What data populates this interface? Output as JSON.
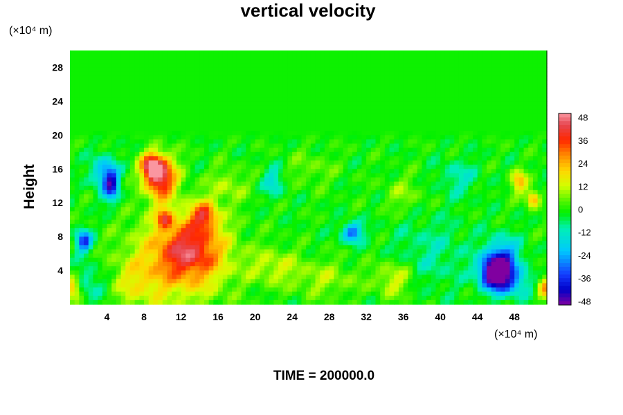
{
  "chart_data": {
    "type": "heatmap",
    "title": "vertical velocity",
    "ylabel": "Height",
    "xunit": "(×10⁴ m)",
    "yunit": "(×10⁴ m)",
    "xlim": [
      0,
      51.5
    ],
    "ylim": [
      0,
      30
    ],
    "xticks": [
      4,
      8,
      12,
      16,
      20,
      24,
      28,
      32,
      36,
      40,
      44,
      48
    ],
    "yticks": [
      4,
      8,
      12,
      16,
      20,
      24,
      28
    ],
    "colorbar": {
      "vmin": -50,
      "vmax": 50,
      "ticks": [
        48,
        36,
        24,
        12,
        0,
        -12,
        -24,
        -36,
        -48
      ]
    },
    "background_value": -1,
    "active_layer_top": 19,
    "features": [
      {
        "x": 13.0,
        "y": 6.5,
        "value": 30,
        "sx": 2.5,
        "sy": 2.5
      },
      {
        "x": 11.5,
        "y": 5.0,
        "value": 18,
        "sx": 4.0,
        "sy": 4.0
      },
      {
        "x": 14.5,
        "y": 10.5,
        "value": 30,
        "sx": 1.0,
        "sy": 1.2
      },
      {
        "x": 9.8,
        "y": 15.0,
        "value": 45,
        "sx": 1.2,
        "sy": 1.8
      },
      {
        "x": 8.8,
        "y": 16.3,
        "value": 38,
        "sx": 0.8,
        "sy": 1.0
      },
      {
        "x": 10.2,
        "y": 10.2,
        "value": 28,
        "sx": 0.6,
        "sy": 0.8
      },
      {
        "x": 45.8,
        "y": 3.8,
        "value": -48,
        "sx": 1.1,
        "sy": 1.3
      },
      {
        "x": 46.8,
        "y": 5.2,
        "value": -30,
        "sx": 1.3,
        "sy": 1.8
      },
      {
        "x": 47.5,
        "y": 2.5,
        "value": -20,
        "sx": 1.5,
        "sy": 1.2
      },
      {
        "x": 4.5,
        "y": 14.2,
        "value": -36,
        "sx": 0.6,
        "sy": 1.4
      },
      {
        "x": 3.5,
        "y": 15.5,
        "value": -20,
        "sx": 0.9,
        "sy": 1.5
      },
      {
        "x": 1.5,
        "y": 7.5,
        "value": -36,
        "sx": 0.6,
        "sy": 0.9
      },
      {
        "x": 30.5,
        "y": 8.5,
        "value": -30,
        "sx": 0.8,
        "sy": 0.8
      },
      {
        "x": 22.0,
        "y": 14.5,
        "value": -15,
        "sx": 0.8,
        "sy": 1.2
      },
      {
        "x": 0.3,
        "y": 2.0,
        "value": 30,
        "sx": 0.6,
        "sy": 1.0
      },
      {
        "x": 51.3,
        "y": 2.0,
        "value": 25,
        "sx": 0.6,
        "sy": 1.0
      },
      {
        "x": 48.5,
        "y": 14.5,
        "value": 25,
        "sx": 0.6,
        "sy": 0.9
      },
      {
        "x": 50.0,
        "y": 12.5,
        "value": 28,
        "sx": 0.5,
        "sy": 0.7
      },
      {
        "x": 22.0,
        "y": 4.5,
        "value": 12,
        "sx": 2.0,
        "sy": 1.5
      },
      {
        "x": 27.5,
        "y": 3.0,
        "value": 10,
        "sx": 2.5,
        "sy": 1.5
      },
      {
        "x": 35.0,
        "y": 3.0,
        "value": 15,
        "sx": 1.5,
        "sy": 1.5
      },
      {
        "x": 7.0,
        "y": 2.5,
        "value": 10,
        "sx": 2.0,
        "sy": 2.0
      },
      {
        "x": 2.0,
        "y": 2.5,
        "value": -12,
        "sx": 1.5,
        "sy": 1.5
      },
      {
        "x": 39.0,
        "y": 6.0,
        "value": -8,
        "sx": 3.0,
        "sy": 3.0
      },
      {
        "x": 17.0,
        "y": 14.0,
        "value": 10,
        "sx": 1.5,
        "sy": 1.5
      },
      {
        "x": 26.0,
        "y": 16.0,
        "value": 6,
        "sx": 2.0,
        "sy": 1.5
      },
      {
        "x": 42.0,
        "y": 15.0,
        "value": -10,
        "sx": 1.5,
        "sy": 1.5
      },
      {
        "x": 36.0,
        "y": 13.0,
        "value": 8,
        "sx": 1.5,
        "sy": 1.5
      }
    ]
  },
  "footer": {
    "time_label": "TIME = 200000.0"
  }
}
